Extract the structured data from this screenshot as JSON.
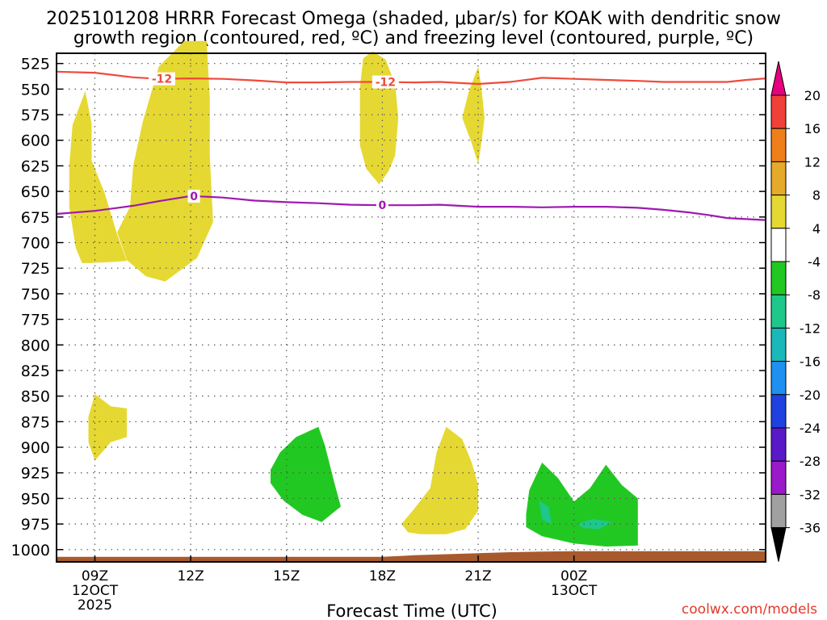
{
  "chart_data": {
    "type": "time-height contour",
    "title_line1": "2025101208 HRRR Forecast Omega (shaded, μbar/s) for KOAK with dendritic snow",
    "title_line2": "growth region (contoured, red, ºC) and freezing level (contoured, purple, ºC)",
    "xlabel": "Forecast Time (UTC)",
    "watermark": "coolwx.com/models",
    "y_axis": {
      "units": "hPa",
      "range": [
        515,
        1012
      ],
      "ticks": [
        "525",
        "550",
        "575",
        "600",
        "625",
        "650",
        "675",
        "700",
        "725",
        "750",
        "775",
        "800",
        "825",
        "850",
        "875",
        "900",
        "925",
        "950",
        "975",
        "1000"
      ]
    },
    "x_axis": {
      "units": "hours since 00Z 12 Oct 2025",
      "range": [
        7.8,
        30.0
      ],
      "ticks": [
        {
          "hour": 9,
          "label": "09Z",
          "sub": "12OCT",
          "sub2": "2025"
        },
        {
          "hour": 12,
          "label": "12Z",
          "sub": "",
          "sub2": ""
        },
        {
          "hour": 15,
          "label": "15Z",
          "sub": "",
          "sub2": ""
        },
        {
          "hour": 18,
          "label": "18Z",
          "sub": "",
          "sub2": ""
        },
        {
          "hour": 21,
          "label": "21Z",
          "sub": "",
          "sub2": ""
        },
        {
          "hour": 24,
          "label": "00Z",
          "sub": "13OCT",
          "sub2": ""
        }
      ]
    },
    "colorbar": {
      "labels": [
        "20",
        "16",
        "12",
        "8",
        "4",
        "-4",
        "-8",
        "-12",
        "-16",
        "-20",
        "-24",
        "-28",
        "-32",
        "-36"
      ],
      "colors": [
        "#e6007e",
        "#f0403a",
        "#ef7f1a",
        "#e5aa2a",
        "#e6d832",
        "#ffffff",
        "#22c822",
        "#1ec88a",
        "#1ab8b8",
        "#1e90ef",
        "#1f41e0",
        "#5a19c8",
        "#9a19c8",
        "#a0a0a0",
        "#000000"
      ]
    },
    "contours": [
      {
        "name": "dendritic -12C",
        "color": "#ef4a3c",
        "label": "-12",
        "x": [
          7.8,
          9,
          10.2,
          11,
          12,
          13,
          14,
          15,
          16,
          17,
          18,
          19,
          19.8,
          21,
          22,
          23,
          24,
          25,
          26,
          26.8,
          27.6,
          28.2,
          28.8,
          29.4,
          30
        ],
        "p": [
          533,
          534,
          538.5,
          540,
          539.5,
          540,
          541.5,
          543.5,
          543.5,
          543,
          543,
          543.5,
          543,
          545,
          543,
          539,
          540,
          541,
          542,
          543,
          543,
          543,
          543,
          541,
          539.5
        ],
        "label_x": [
          11.1,
          18.1
        ]
      },
      {
        "name": "freezing level 0C",
        "color": "#9e1ab0",
        "label": "0",
        "x": [
          7.8,
          9,
          10.2,
          11,
          12,
          13,
          14,
          15,
          16,
          17,
          18,
          19,
          19.8,
          21,
          22,
          23,
          24,
          25,
          26,
          26.8,
          27.6,
          28.2,
          28.8,
          29.4,
          30
        ],
        "p": [
          672,
          669,
          664,
          659.5,
          654.5,
          656,
          659,
          660.5,
          661.5,
          663,
          663.5,
          663.5,
          663,
          665,
          665,
          665.5,
          665,
          665,
          666,
          668,
          670.5,
          673,
          676,
          677,
          678
        ],
        "label_x": [
          12.1,
          18.0
        ]
      }
    ],
    "shaded_regions": [
      {
        "level": "4 to 8",
        "color": "#e6d832",
        "points": [
          [
            8.8,
            720
          ],
          [
            9.5,
            719
          ],
          [
            10.0,
            718
          ],
          [
            9.7,
            692
          ],
          [
            9.3,
            651
          ],
          [
            8.9,
            620
          ],
          [
            8.9,
            584
          ],
          [
            8.7,
            552
          ],
          [
            8.3,
            585
          ],
          [
            8.2,
            625
          ],
          [
            8.2,
            665
          ],
          [
            8.4,
            705
          ],
          [
            8.6,
            720
          ]
        ]
      },
      {
        "level": "4 to 8",
        "color": "#e6d832",
        "points": [
          [
            10.0,
            717
          ],
          [
            9.7,
            690
          ],
          [
            10.1,
            665
          ],
          [
            10.2,
            625
          ],
          [
            10.5,
            582
          ],
          [
            11.0,
            528
          ],
          [
            11.8,
            503
          ],
          [
            12.5,
            503
          ],
          [
            12.6,
            560
          ],
          [
            12.6,
            615
          ],
          [
            12.7,
            680
          ],
          [
            12.2,
            715
          ],
          [
            11.2,
            738
          ],
          [
            10.6,
            733
          ]
        ]
      },
      {
        "level": "4 to 8",
        "color": "#e6d832",
        "points": [
          [
            17.3,
            548
          ],
          [
            17.4,
            520
          ],
          [
            17.7,
            513
          ],
          [
            18.1,
            521
          ],
          [
            18.4,
            545
          ],
          [
            18.5,
            578
          ],
          [
            18.4,
            615
          ],
          [
            18.2,
            630
          ],
          [
            17.9,
            643
          ],
          [
            17.5,
            628
          ],
          [
            17.3,
            605
          ],
          [
            17.3,
            578
          ]
        ]
      },
      {
        "level": "4 to 8",
        "color": "#e6d832",
        "points": [
          [
            20.5,
            578
          ],
          [
            20.7,
            553
          ],
          [
            21.0,
            528
          ],
          [
            21.1,
            548
          ],
          [
            21.2,
            578
          ],
          [
            21.1,
            603
          ],
          [
            21.0,
            623
          ],
          [
            20.8,
            603
          ]
        ]
      },
      {
        "level": "4 to 8",
        "color": "#e6d832",
        "points": [
          [
            8.8,
            895
          ],
          [
            8.8,
            870
          ],
          [
            9.0,
            848
          ],
          [
            9.5,
            860
          ],
          [
            10.0,
            862
          ],
          [
            10.0,
            890
          ],
          [
            9.5,
            895
          ],
          [
            9.0,
            913
          ]
        ]
      },
      {
        "level": "4 to 8",
        "color": "#e6d832",
        "points": [
          [
            18.6,
            975
          ],
          [
            19.0,
            960
          ],
          [
            19.5,
            940
          ],
          [
            19.7,
            905
          ],
          [
            20.0,
            880
          ],
          [
            20.5,
            892
          ],
          [
            20.8,
            915
          ],
          [
            21.0,
            937
          ],
          [
            21.0,
            962
          ],
          [
            20.6,
            980
          ],
          [
            20.0,
            985
          ],
          [
            19.2,
            985
          ],
          [
            18.8,
            983
          ]
        ]
      },
      {
        "level": "-4 to -8",
        "color": "#22c822",
        "points": [
          [
            14.5,
            922
          ],
          [
            14.8,
            905
          ],
          [
            15.3,
            890
          ],
          [
            16.0,
            880
          ],
          [
            16.2,
            898
          ],
          [
            16.5,
            935
          ],
          [
            16.7,
            958
          ],
          [
            16.1,
            973
          ],
          [
            15.5,
            966
          ],
          [
            14.9,
            952
          ],
          [
            14.5,
            935
          ]
        ]
      },
      {
        "level": "-4 to -8",
        "color": "#22c822",
        "points": [
          [
            22.5,
            966
          ],
          [
            22.6,
            942
          ],
          [
            23.0,
            915
          ],
          [
            23.5,
            930
          ],
          [
            24.0,
            953
          ],
          [
            24.5,
            940
          ],
          [
            25.0,
            917
          ],
          [
            25.5,
            937
          ],
          [
            26.0,
            950
          ],
          [
            26.0,
            996
          ],
          [
            25.0,
            997
          ],
          [
            24.0,
            994
          ],
          [
            23.0,
            987
          ],
          [
            22.5,
            978
          ]
        ]
      },
      {
        "level": "-8 to -12",
        "color": "#1ec88a",
        "points": [
          [
            22.9,
            952
          ],
          [
            23.2,
            958
          ],
          [
            23.3,
            975
          ],
          [
            23.0,
            971
          ],
          [
            22.95,
            960
          ]
        ]
      },
      {
        "level": "-8 to -12",
        "color": "#1ec88a",
        "points": [
          [
            24.1,
            975
          ],
          [
            24.6,
            970
          ],
          [
            25.2,
            973
          ],
          [
            24.8,
            980
          ],
          [
            24.3,
            979
          ]
        ]
      }
    ],
    "ground": {
      "color": "#a85a2e",
      "x": [
        7.8,
        18.0,
        18.4,
        19.0,
        20.0,
        21.0,
        22.0,
        23.0,
        24.0,
        25.0,
        26.0,
        30.0
      ],
      "p": [
        1007,
        1007,
        1006.5,
        1005.5,
        1004.5,
        1003.5,
        1002.5,
        1002,
        1001.5,
        1001.5,
        1001.5,
        1001.5
      ]
    }
  }
}
